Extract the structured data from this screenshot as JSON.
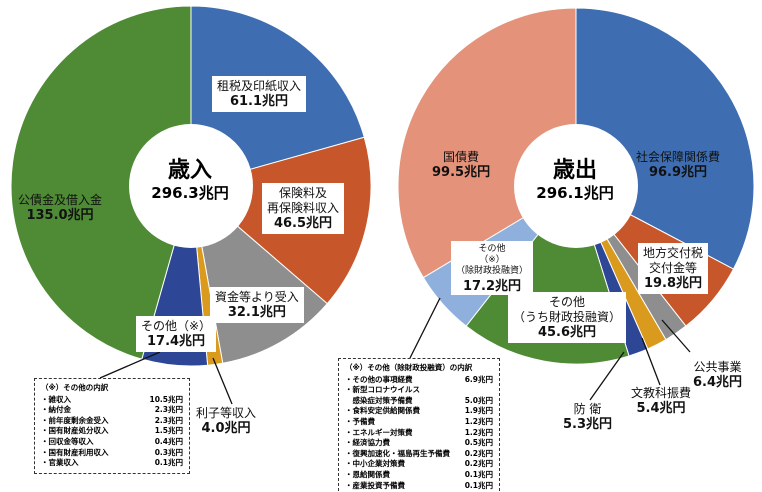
{
  "chart_data": [
    {
      "type": "pie",
      "title": "歳入",
      "total": "296.3兆円",
      "unit": "兆円",
      "slices": [
        {
          "label": "租税及印紙収入",
          "value": 61.1,
          "display": "61.1兆円",
          "color": "#3E6EB1"
        },
        {
          "label": "保険料及再保険料収入",
          "display_label": [
            "保険料及",
            "再保険料収入"
          ],
          "value": 46.5,
          "display": "46.5兆円",
          "color": "#C7572A"
        },
        {
          "label": "資金等より受入",
          "value": 32.1,
          "display": "32.1兆円",
          "color": "#8E8E8E"
        },
        {
          "label": "利子等収入",
          "value": 4.0,
          "display": "4.0兆円",
          "color": "#D99A1E"
        },
        {
          "label": "その他（※）",
          "value": 17.4,
          "display": "17.4兆円",
          "color": "#2D4796"
        },
        {
          "label": "公債金及借入金",
          "value": 135.0,
          "display": "135.0兆円",
          "color": "#4E8B34"
        }
      ],
      "note": {
        "title": "（※）その他の内訳",
        "items": [
          {
            "label": "・雑収入",
            "value": "10.5兆円"
          },
          {
            "label": "・納付金",
            "value": "2.3兆円"
          },
          {
            "label": "・前年度剰余金受入",
            "value": "2.3兆円"
          },
          {
            "label": "・国有財産処分収入",
            "value": "1.5兆円"
          },
          {
            "label": "・回収金等収入",
            "value": "0.4兆円"
          },
          {
            "label": "・国有財産利用収入",
            "value": "0.3兆円"
          },
          {
            "label": "・官業収入",
            "value": "0.1兆円"
          }
        ]
      }
    },
    {
      "type": "pie",
      "title": "歳出",
      "total": "296.1兆円",
      "unit": "兆円",
      "slices": [
        {
          "label": "社会保障関係費",
          "value": 96.9,
          "display": "96.9兆円",
          "color": "#3E6EB1"
        },
        {
          "label": "地方交付税交付金等",
          "display_label": [
            "地方交付税",
            "交付金等"
          ],
          "value": 19.8,
          "display": "19.8兆円",
          "color": "#C7572A"
        },
        {
          "label": "公共事業",
          "value": 6.4,
          "display": "6.4兆円",
          "color": "#8E8E8E"
        },
        {
          "label": "文教科振費",
          "value": 5.4,
          "display": "5.4兆円",
          "color": "#D99A1E"
        },
        {
          "label": "防 衛",
          "value": 5.3,
          "display": "5.3兆円",
          "color": "#2D4796"
        },
        {
          "label": "その他（うち財政投融資）",
          "display_label": [
            "その他",
            "（うち財政投融資）"
          ],
          "value": 45.6,
          "display": "45.6兆円",
          "color": "#4E8B34"
        },
        {
          "label": "その他（※）（除財政投融資）",
          "display_label": [
            "その他",
            "（※）",
            "（除財政投融資）"
          ],
          "value": 17.2,
          "display": "17.2兆円",
          "color": "#8FAFDC"
        },
        {
          "label": "国債費",
          "value": 99.5,
          "display": "99.5兆円",
          "color": "#E4927A"
        }
      ],
      "note": {
        "title": "（※）その他（除財政投融資）の内訳",
        "items": [
          {
            "label": "・その他の事項経費",
            "value": "6.9兆円"
          },
          {
            "label": "・新型コロナウイルス",
            "value": ""
          },
          {
            "label": "　感染症対策予備費",
            "value": "5.0兆円"
          },
          {
            "label": "・食料安定供給関係費",
            "value": "1.9兆円"
          },
          {
            "label": "・予備費",
            "value": "1.2兆円"
          },
          {
            "label": "・エネルギー対策費",
            "value": "1.2兆円"
          },
          {
            "label": "・経済協力費",
            "value": "0.5兆円"
          },
          {
            "label": "・復興加速化・福島再生予備費",
            "value": "0.2兆円"
          },
          {
            "label": "・中小企業対策費",
            "value": "0.2兆円"
          },
          {
            "label": "・恩給関係費",
            "value": "0.1兆円"
          },
          {
            "label": "・産業投資予備費",
            "value": "0.1兆円"
          }
        ]
      }
    }
  ]
}
